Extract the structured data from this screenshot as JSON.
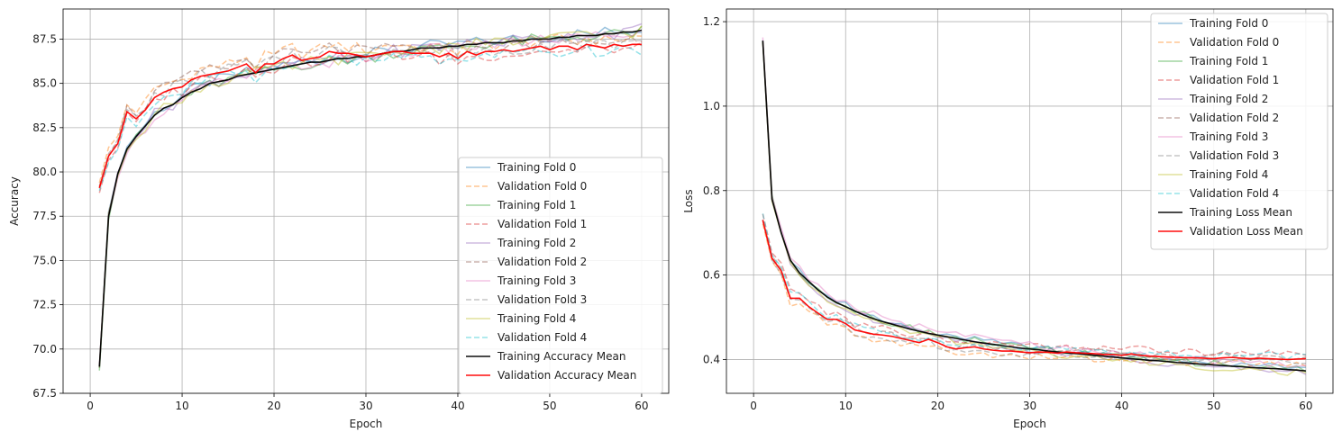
{
  "chart_data": [
    {
      "type": "line",
      "xlabel": "Epoch",
      "ylabel": "Accuracy",
      "xlim": [
        -2.95,
        62.95
      ],
      "ylim": [
        67.5,
        89.2
      ],
      "xticks": [
        "0",
        "10",
        "20",
        "30",
        "40",
        "50",
        "60"
      ],
      "yticks": [
        "67.5",
        "70.0",
        "72.5",
        "75.0",
        "77.5",
        "80.0",
        "82.5",
        "85.0",
        "87.5"
      ],
      "grid": true,
      "legend_position": "lower-right",
      "series": [
        {
          "name": "Training Fold 0",
          "color": "#1f77b4",
          "style": "solid",
          "faint": true,
          "base": "train_acc",
          "offset": 0.1
        },
        {
          "name": "Validation Fold 0",
          "color": "#ff7f0e",
          "style": "dashed",
          "faint": true,
          "base": "val_acc",
          "offset": 0.4
        },
        {
          "name": "Training Fold 1",
          "color": "#2ca02c",
          "style": "solid",
          "faint": true,
          "base": "train_acc",
          "offset": -0.05
        },
        {
          "name": "Validation Fold 1",
          "color": "#d62728",
          "style": "dashed",
          "faint": true,
          "base": "val_acc",
          "offset": -0.2
        },
        {
          "name": "Training Fold 2",
          "color": "#9467bd",
          "style": "solid",
          "faint": true,
          "base": "train_acc",
          "offset": 0.05
        },
        {
          "name": "Validation Fold 2",
          "color": "#8c564b",
          "style": "dashed",
          "faint": true,
          "base": "val_acc",
          "offset": 0.25
        },
        {
          "name": "Training Fold 3",
          "color": "#e377c2",
          "style": "solid",
          "faint": true,
          "base": "train_acc",
          "offset": -0.1
        },
        {
          "name": "Validation Fold 3",
          "color": "#7f7f7f",
          "style": "dashed",
          "faint": true,
          "base": "val_acc",
          "offset": 0.1
        },
        {
          "name": "Training Fold 4",
          "color": "#bcbd22",
          "style": "solid",
          "faint": true,
          "base": "train_acc",
          "offset": 0.0
        },
        {
          "name": "Validation Fold 4",
          "color": "#17becf",
          "style": "dashed",
          "faint": true,
          "base": "val_acc",
          "offset": -0.3
        },
        {
          "name": "Training Accuracy Mean",
          "color": "#000000",
          "style": "solid",
          "faint": false,
          "base": "train_acc",
          "offset": 0
        },
        {
          "name": "Validation Accuracy Mean",
          "color": "#ff0000",
          "style": "solid",
          "faint": false,
          "base": "val_acc",
          "offset": 0
        }
      ]
    },
    {
      "type": "line",
      "xlabel": "Epoch",
      "ylabel": "Loss",
      "xlim": [
        -2.95,
        62.95
      ],
      "ylim": [
        0.32,
        1.23
      ],
      "xticks": [
        "0",
        "10",
        "20",
        "30",
        "40",
        "50",
        "60"
      ],
      "yticks": [
        "0.4",
        "0.6",
        "0.8",
        "1.0",
        "1.2"
      ],
      "grid": true,
      "legend_position": "upper-right",
      "series": [
        {
          "name": "Training Fold 0",
          "color": "#1f77b4",
          "style": "solid",
          "faint": true,
          "base": "train_loss",
          "offset": 0.005
        },
        {
          "name": "Validation Fold 0",
          "color": "#ff7f0e",
          "style": "dashed",
          "faint": true,
          "base": "val_loss",
          "offset": -0.012
        },
        {
          "name": "Training Fold 1",
          "color": "#2ca02c",
          "style": "solid",
          "faint": true,
          "base": "train_loss",
          "offset": 0.003
        },
        {
          "name": "Validation Fold 1",
          "color": "#d62728",
          "style": "dashed",
          "faint": true,
          "base": "val_loss",
          "offset": 0.015
        },
        {
          "name": "Training Fold 2",
          "color": "#9467bd",
          "style": "solid",
          "faint": true,
          "base": "train_loss",
          "offset": -0.003
        },
        {
          "name": "Validation Fold 2",
          "color": "#8c564b",
          "style": "dashed",
          "faint": true,
          "base": "val_loss",
          "offset": 0.004
        },
        {
          "name": "Training Fold 3",
          "color": "#e377c2",
          "style": "solid",
          "faint": true,
          "base": "train_loss",
          "offset": 0.01
        },
        {
          "name": "Validation Fold 3",
          "color": "#7f7f7f",
          "style": "dashed",
          "faint": true,
          "base": "val_loss",
          "offset": -0.006
        },
        {
          "name": "Training Fold 4",
          "color": "#bcbd22",
          "style": "solid",
          "faint": true,
          "base": "train_loss",
          "offset": -0.006
        },
        {
          "name": "Validation Fold 4",
          "color": "#17becf",
          "style": "dashed",
          "faint": true,
          "base": "val_loss",
          "offset": 0.008
        },
        {
          "name": "Training Loss Mean",
          "color": "#000000",
          "style": "solid",
          "faint": false,
          "base": "train_loss",
          "offset": 0
        },
        {
          "name": "Validation Loss Mean",
          "color": "#ff0000",
          "style": "solid",
          "faint": false,
          "base": "val_loss",
          "offset": 0
        }
      ]
    }
  ],
  "curves": {
    "x": [
      1,
      2,
      3,
      4,
      5,
      6,
      7,
      8,
      9,
      10,
      11,
      12,
      13,
      14,
      15,
      16,
      17,
      18,
      19,
      20,
      21,
      22,
      23,
      24,
      25,
      26,
      27,
      28,
      29,
      30,
      31,
      32,
      33,
      34,
      35,
      36,
      37,
      38,
      39,
      40,
      41,
      42,
      43,
      44,
      45,
      46,
      47,
      48,
      49,
      50,
      51,
      52,
      53,
      54,
      55,
      56,
      57,
      58,
      59,
      60
    ],
    "train_acc": [
      69.0,
      77.5,
      79.9,
      81.3,
      82.0,
      82.6,
      83.2,
      83.6,
      83.8,
      84.2,
      84.5,
      84.7,
      85.0,
      85.1,
      85.2,
      85.4,
      85.5,
      85.6,
      85.7,
      85.8,
      85.9,
      86.0,
      86.1,
      86.2,
      86.2,
      86.3,
      86.4,
      86.4,
      86.5,
      86.5,
      86.6,
      86.7,
      86.8,
      86.8,
      86.9,
      87.0,
      87.0,
      87.0,
      87.1,
      87.1,
      87.2,
      87.2,
      87.3,
      87.3,
      87.3,
      87.4,
      87.4,
      87.5,
      87.5,
      87.5,
      87.6,
      87.6,
      87.7,
      87.7,
      87.7,
      87.8,
      87.8,
      87.9,
      87.9,
      88.0
    ],
    "val_acc": [
      79.1,
      80.9,
      81.6,
      83.4,
      83.0,
      83.5,
      84.2,
      84.5,
      84.7,
      84.8,
      85.2,
      85.4,
      85.5,
      85.6,
      85.7,
      85.9,
      86.1,
      85.6,
      86.1,
      86.1,
      86.4,
      86.6,
      86.3,
      86.4,
      86.5,
      86.8,
      86.7,
      86.7,
      86.6,
      86.5,
      86.6,
      86.7,
      86.8,
      86.8,
      86.7,
      86.7,
      86.7,
      86.5,
      86.7,
      86.4,
      86.8,
      86.6,
      86.8,
      86.8,
      86.9,
      86.8,
      86.9,
      87.0,
      87.1,
      86.9,
      87.1,
      87.1,
      86.9,
      87.2,
      87.1,
      87.0,
      87.2,
      87.1,
      87.2,
      87.2
    ],
    "train_loss": [
      1.155,
      0.78,
      0.7,
      0.635,
      0.605,
      0.585,
      0.565,
      0.548,
      0.535,
      0.525,
      0.515,
      0.505,
      0.497,
      0.49,
      0.484,
      0.478,
      0.472,
      0.467,
      0.462,
      0.458,
      0.454,
      0.45,
      0.446,
      0.442,
      0.439,
      0.436,
      0.433,
      0.43,
      0.427,
      0.425,
      0.423,
      0.42,
      0.418,
      0.416,
      0.414,
      0.412,
      0.41,
      0.408,
      0.406,
      0.404,
      0.402,
      0.4,
      0.398,
      0.397,
      0.395,
      0.393,
      0.392,
      0.39,
      0.389,
      0.387,
      0.386,
      0.384,
      0.383,
      0.381,
      0.38,
      0.379,
      0.378,
      0.376,
      0.375,
      0.373
    ],
    "val_loss": [
      0.73,
      0.64,
      0.61,
      0.545,
      0.545,
      0.525,
      0.51,
      0.495,
      0.495,
      0.485,
      0.47,
      0.465,
      0.46,
      0.458,
      0.455,
      0.45,
      0.445,
      0.44,
      0.448,
      0.44,
      0.43,
      0.425,
      0.428,
      0.43,
      0.425,
      0.422,
      0.42,
      0.42,
      0.418,
      0.416,
      0.418,
      0.417,
      0.415,
      0.418,
      0.416,
      0.415,
      0.414,
      0.412,
      0.412,
      0.41,
      0.413,
      0.41,
      0.408,
      0.407,
      0.406,
      0.405,
      0.404,
      0.404,
      0.403,
      0.402,
      0.404,
      0.405,
      0.403,
      0.402,
      0.403,
      0.402,
      0.401,
      0.4,
      0.401,
      0.402
    ]
  }
}
